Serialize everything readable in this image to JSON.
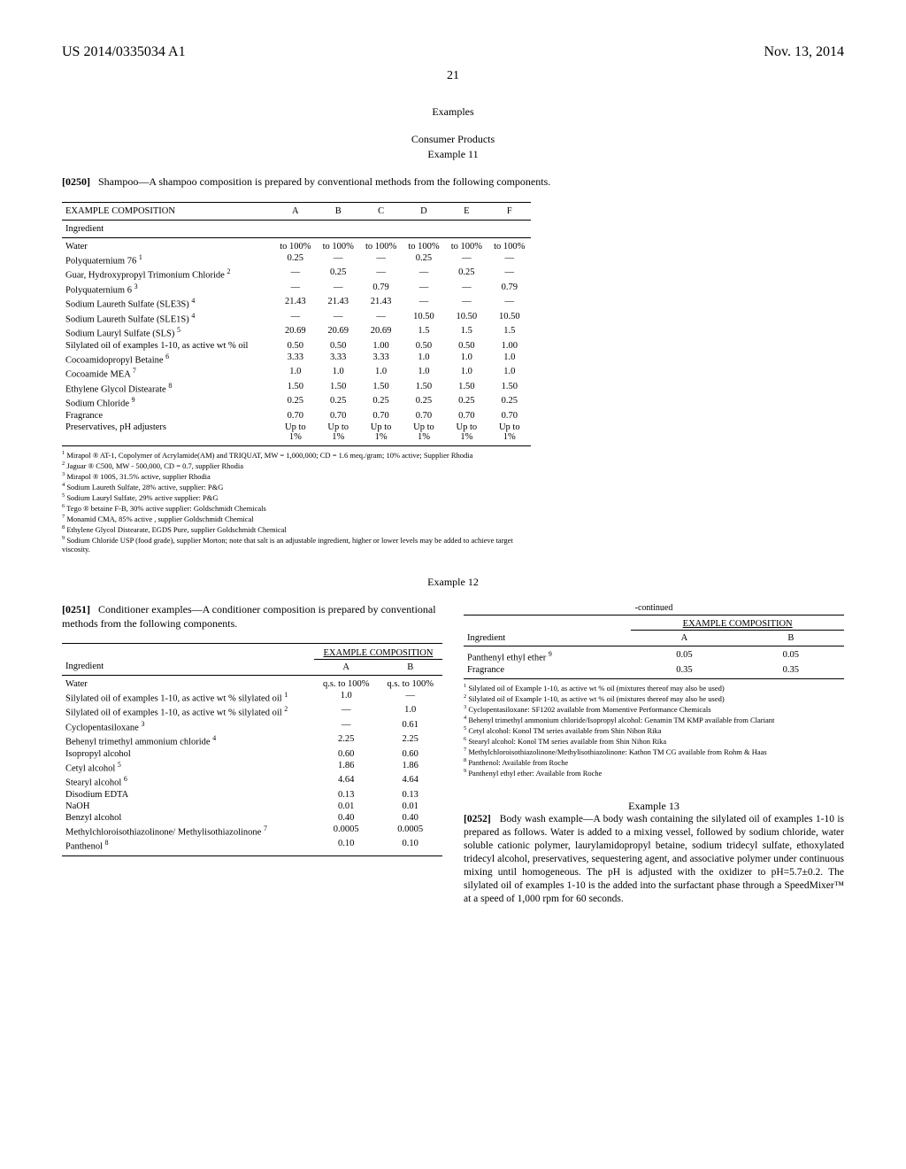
{
  "header": {
    "left": "US 2014/0335034 A1",
    "right": "Nov. 13, 2014"
  },
  "page_num": "21",
  "section_examples": "Examples",
  "consumer_products": "Consumer Products",
  "example11_title": "Example 11",
  "para0250_num": "[0250]",
  "para0250_text": "Shampoo—A shampoo composition is prepared by conventional methods from the following components.",
  "table1": {
    "header": "EXAMPLE COMPOSITION",
    "cols": [
      "A",
      "B",
      "C",
      "D",
      "E",
      "F"
    ],
    "ingredient_label": "Ingredient",
    "rows": [
      {
        "name": "Water",
        "vals": [
          "to 100%",
          "to 100%",
          "to 100%",
          "to 100%",
          "to 100%",
          "to 100%"
        ]
      },
      {
        "name": "Polyquaternium 76 ¹",
        "vals": [
          "0.25",
          "—",
          "—",
          "0.25",
          "—",
          "—"
        ]
      },
      {
        "name": "Guar, Hydroxypropyl Trimonium Chloride ²",
        "vals": [
          "—",
          "0.25",
          "—",
          "—",
          "0.25",
          "—"
        ]
      },
      {
        "name": "Polyquaternium 6 ³",
        "vals": [
          "—",
          "—",
          "0.79",
          "—",
          "—",
          "0.79"
        ]
      },
      {
        "name": "Sodium Laureth Sulfate (SLE3S) ⁴",
        "vals": [
          "21.43",
          "21.43",
          "21.43",
          "—",
          "—",
          "—"
        ]
      },
      {
        "name": "Sodium Laureth Sulfate (SLE1S) ⁴",
        "vals": [
          "—",
          "—",
          "—",
          "10.50",
          "10.50",
          "10.50"
        ]
      },
      {
        "name": "Sodium Lauryl Sulfate (SLS) ⁵",
        "vals": [
          "20.69",
          "20.69",
          "20.69",
          "1.5",
          "1.5",
          "1.5"
        ]
      },
      {
        "name": "Silylated oil of examples 1-10, as active wt % oil",
        "vals": [
          "0.50",
          "0.50",
          "1.00",
          "0.50",
          "0.50",
          "1.00"
        ]
      },
      {
        "name": "Cocoamidopropyl Betaine ⁶",
        "vals": [
          "3.33",
          "3.33",
          "3.33",
          "1.0",
          "1.0",
          "1.0"
        ]
      },
      {
        "name": "Cocoamide MEA ⁷",
        "vals": [
          "1.0",
          "1.0",
          "1.0",
          "1.0",
          "1.0",
          "1.0"
        ]
      },
      {
        "name": "Ethylene Glycol Distearate ⁸",
        "vals": [
          "1.50",
          "1.50",
          "1.50",
          "1.50",
          "1.50",
          "1.50"
        ]
      },
      {
        "name": "Sodium Chloride ⁹",
        "vals": [
          "0.25",
          "0.25",
          "0.25",
          "0.25",
          "0.25",
          "0.25"
        ]
      },
      {
        "name": "Fragrance",
        "vals": [
          "0.70",
          "0.70",
          "0.70",
          "0.70",
          "0.70",
          "0.70"
        ]
      },
      {
        "name": "Preservatives, pH adjusters",
        "vals": [
          "Up to 1%",
          "Up to 1%",
          "Up to 1%",
          "Up to 1%",
          "Up to 1%",
          "Up to 1%"
        ]
      }
    ],
    "footnotes": [
      "¹ Mirapol ® AT-1, Copolymer of Acrylamide(AM) and TRIQUAT, MW = 1,000,000; CD = 1.6 meq./gram; 10% active; Supplier Rhodia",
      "² Jaguar ® C500, MW - 500,000, CD = 0.7, supplier Rhodia",
      "³ Mirapol ® 100S, 31.5% active, supplier Rhodia",
      "⁴ Sodium Laureth Sulfate, 28% active, supplier: P&G",
      "⁵ Sodium Lauryl Sulfate, 29% active supplier: P&G",
      "⁶ Tego ® betaine F-B, 30% active supplier: Goldschmidt Chemicals",
      "⁷ Monamid CMA, 85% active , supplier Goldschmidt Chemical",
      "⁸ Ethylene Glycol Distearate, EGDS Pure, supplier Goldschmidt Chemical",
      "⁹ Sodium Chloride USP (food grade), supplier Morton; note that salt is an adjustable ingredient, higher or lower levels may be added to achieve target viscosity."
    ]
  },
  "example12_title": "Example 12",
  "para0251_num": "[0251]",
  "para0251_text": "Conditioner examples—A conditioner composition is prepared by conventional methods from the following components.",
  "table2": {
    "header": "EXAMPLE COMPOSITION",
    "cols": [
      "A",
      "B"
    ],
    "ingredient_label": "Ingredient",
    "rows": [
      {
        "name": "Water",
        "vals": [
          "q.s. to 100%",
          "q.s. to 100%"
        ]
      },
      {
        "name": "Silylated oil of examples 1-10, as active wt % silylated oil ¹",
        "vals": [
          "1.0",
          "—"
        ]
      },
      {
        "name": "Silylated oil of examples 1-10, as active wt % silylated oil ²",
        "vals": [
          "—",
          "1.0"
        ]
      },
      {
        "name": "Cyclopentasiloxane ³",
        "vals": [
          "—",
          "0.61"
        ]
      },
      {
        "name": "Behenyl trimethyl ammonium chloride ⁴",
        "vals": [
          "2.25",
          "2.25"
        ]
      },
      {
        "name": "Isopropyl alcohol",
        "vals": [
          "0.60",
          "0.60"
        ]
      },
      {
        "name": "Cetyl alcohol ⁵",
        "vals": [
          "1.86",
          "1.86"
        ]
      },
      {
        "name": "Stearyl alcohol ⁶",
        "vals": [
          "4.64",
          "4.64"
        ]
      },
      {
        "name": "Disodium EDTA",
        "vals": [
          "0.13",
          "0.13"
        ]
      },
      {
        "name": "NaOH",
        "vals": [
          "0.01",
          "0.01"
        ]
      },
      {
        "name": "Benzyl alcohol",
        "vals": [
          "0.40",
          "0.40"
        ]
      },
      {
        "name": "Methylchloroisothiazolinone/ Methylisothiazolinone ⁷",
        "vals": [
          "0.0005",
          "0.0005"
        ]
      },
      {
        "name": "Panthenol ⁸",
        "vals": [
          "0.10",
          "0.10"
        ]
      }
    ]
  },
  "continued_label": "-continued",
  "table2b": {
    "header": "EXAMPLE COMPOSITION",
    "cols": [
      "A",
      "B"
    ],
    "ingredient_label": "Ingredient",
    "rows": [
      {
        "name": "Panthenyl ethyl ether ⁹",
        "vals": [
          "0.05",
          "0.05"
        ]
      },
      {
        "name": "Fragrance",
        "vals": [
          "0.35",
          "0.35"
        ]
      }
    ],
    "footnotes": [
      "¹ Silylated oil of Example 1-10, as active wt % oil (mixtures thereof may also be used)",
      "² Silylated oil of Example 1-10, as active wt % oil (mixtures thereof may also be used)",
      "³ Cyclopentasiloxane: SF1202 available from Momentive Performance Chemicals",
      "⁴ Behenyl trimethyl ammonium chloride/Isopropyl alcohol: Genamin TM KMP available from Clariant",
      "⁵ Cetyl alcohol: Konol TM series available from Shin Nihon Rika",
      "⁶ Stearyl alcohol: Konol TM series available from Shin Nihon Rika",
      "⁷ Methylchloroisothiazolinone/Methylisothiazolinone: Kathon TM CG available from Rohm & Haas",
      "⁸ Panthenol: Available from Roche",
      "⁹ Panthenyl ethyl ether: Available from Roche"
    ]
  },
  "example13_title": "Example 13",
  "para0252_num": "[0252]",
  "para0252_text": "Body wash example—A body wash containing the silylated oil of examples 1-10 is prepared as follows. Water is added to a mixing vessel, followed by sodium chloride, water soluble cationic polymer, laurylamidopropyl betaine, sodium tridecyl sulfate, ethoxylated tridecyl alcohol, preservatives, sequestering agent, and associative polymer under continuous mixing until homogeneous. The pH is adjusted with the oxidizer to pH=5.7±0.2. The silylated oil of examples 1-10 is the added into the surfactant phase through a SpeedMixer™ at a speed of 1,000 rpm for 60 seconds."
}
